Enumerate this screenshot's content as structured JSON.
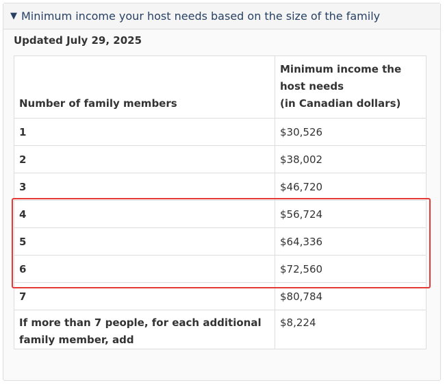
{
  "section": {
    "summary_icon": "triangle-down-icon",
    "summary_label": "Minimum income your host needs based on the size of the family",
    "updated": "Updated July 29, 2025"
  },
  "table": {
    "headers": [
      "Number of family members",
      "Minimum income the host needs (in Canadian dollars)"
    ],
    "header_col2_lines": [
      "Minimum income the",
      "host needs",
      "(in Canadian dollars)"
    ],
    "rows": [
      {
        "members": "1",
        "income": "$30,526"
      },
      {
        "members": "2",
        "income": "$38,002"
      },
      {
        "members": "3",
        "income": "$46,720"
      },
      {
        "members": "4",
        "income": "$56,724"
      },
      {
        "members": "5",
        "income": "$64,336"
      },
      {
        "members": "6",
        "income": "$72,560"
      },
      {
        "members": "7",
        "income": "$80,784"
      }
    ],
    "extra_row": {
      "members_lines": [
        "If more than 7 people, for each additional",
        "family member, add"
      ],
      "income": "$8,224"
    }
  },
  "highlight": {
    "color": "#e53935",
    "rows": [
      "4",
      "5",
      "6"
    ]
  }
}
